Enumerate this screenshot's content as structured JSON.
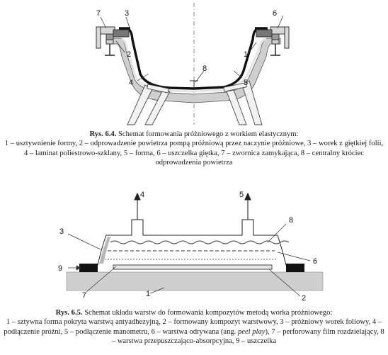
{
  "figure1": {
    "callouts": [
      "1",
      "2",
      "3",
      "4",
      "5",
      "6",
      "7",
      "8"
    ],
    "caption_label": "Rys. 6.4.",
    "caption_text": "Schemat formowania próżniowego z workiem elastycznym:",
    "caption_legend": "1 – usztywnienie formy, 2 – odprowadzenie powietrza pompą próżniową przez naczynie próżniowe, 3 – worek z giętkiej folii, 4 – laminat poliestrowo-szklany, 5 – forma, 6 – uszczelka giętka, 7 – zwornica zamykająca, 8 – centralny króciec odprowadzenia powietrza"
  },
  "figure2": {
    "callouts": [
      "1",
      "2",
      "3",
      "4",
      "5",
      "6",
      "7",
      "8",
      "9"
    ],
    "caption_label": "Rys. 6.5.",
    "caption_text": "Schemat układu warstw do formowania kompozytów metodą worka próżniowego:",
    "caption_legend_a": "1 – sztywna forma pokryta warstwą antyadhezyjną, 2 – formowany kompozyt warstwowy, 3 – próżniowy worek foliowy, 4 – podłączenie próżni, 5 – podłączenie manometru, 6 – warstwa odrywana (ang. ",
    "caption_legend_italic": "peel play",
    "caption_legend_b": "), 7 – perforowany film rozdzielający, 8 – warstwa przepuszczająco-absorpcyjna, 9 – uszczelka"
  }
}
